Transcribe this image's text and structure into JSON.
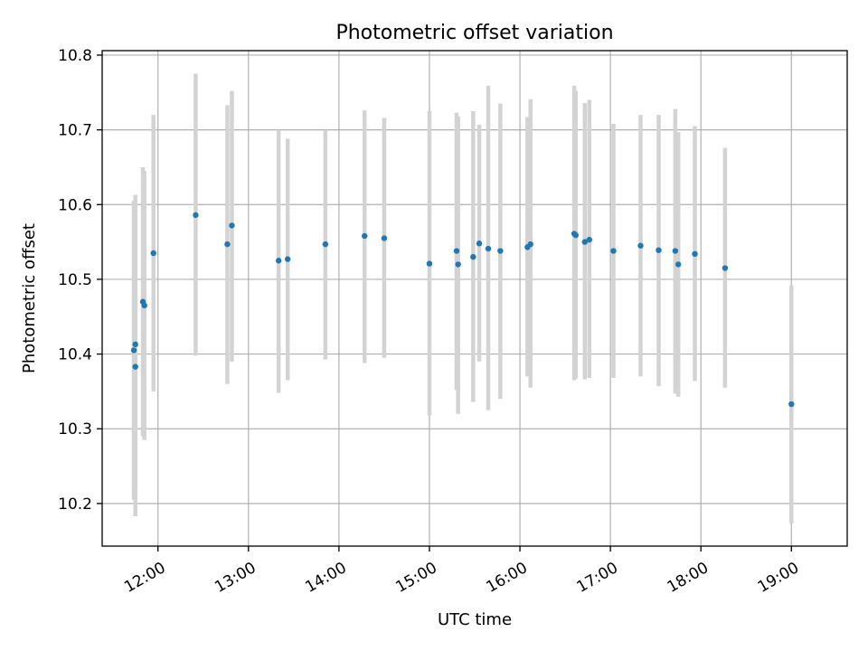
{
  "chart_data": {
    "type": "scatter",
    "title": "Photometric offset variation",
    "xlabel": "UTC time",
    "ylabel": "Photometric offset",
    "x_axis_type": "time",
    "xlim": [
      "11:23",
      "19:37"
    ],
    "ylim": [
      10.143,
      10.806
    ],
    "x_ticks": [
      "12:00",
      "13:00",
      "14:00",
      "15:00",
      "16:00",
      "17:00",
      "18:00",
      "19:00"
    ],
    "y_ticks": [
      10.2,
      10.3,
      10.4,
      10.5,
      10.6,
      10.7,
      10.8
    ],
    "y_tick_labels": [
      "10.2",
      "10.3",
      "10.4",
      "10.5",
      "10.6",
      "10.7",
      "10.8"
    ],
    "grid": true,
    "legend": "none",
    "colors": {
      "point": "#1f77b4",
      "errorbar": "#d3d3d3"
    },
    "series": [
      {
        "points": [
          {
            "x": "11:44",
            "y": 10.405,
            "ylow": 10.205,
            "yhigh": 10.605
          },
          {
            "x": "11:45",
            "y": 10.413,
            "ylow": 10.213,
            "yhigh": 10.613
          },
          {
            "x": "11:45",
            "y": 10.383,
            "ylow": 10.183,
            "yhigh": 10.583
          },
          {
            "x": "11:50",
            "y": 10.47,
            "ylow": 10.29,
            "yhigh": 10.65
          },
          {
            "x": "11:51",
            "y": 10.465,
            "ylow": 10.285,
            "yhigh": 10.645
          },
          {
            "x": "11:57",
            "y": 10.535,
            "ylow": 10.35,
            "yhigh": 10.72
          },
          {
            "x": "12:25",
            "y": 10.586,
            "ylow": 10.398,
            "yhigh": 10.775
          },
          {
            "x": "12:46",
            "y": 10.547,
            "ylow": 10.36,
            "yhigh": 10.733
          },
          {
            "x": "12:49",
            "y": 10.572,
            "ylow": 10.39,
            "yhigh": 10.752
          },
          {
            "x": "13:20",
            "y": 10.525,
            "ylow": 10.348,
            "yhigh": 10.7
          },
          {
            "x": "13:26",
            "y": 10.527,
            "ylow": 10.365,
            "yhigh": 10.688
          },
          {
            "x": "13:51",
            "y": 10.547,
            "ylow": 10.393,
            "yhigh": 10.7
          },
          {
            "x": "14:17",
            "y": 10.558,
            "ylow": 10.388,
            "yhigh": 10.726
          },
          {
            "x": "14:30",
            "y": 10.555,
            "ylow": 10.395,
            "yhigh": 10.716
          },
          {
            "x": "15:00",
            "y": 10.521,
            "ylow": 10.318,
            "yhigh": 10.725
          },
          {
            "x": "15:18",
            "y": 10.538,
            "ylow": 10.352,
            "yhigh": 10.723
          },
          {
            "x": "15:19",
            "y": 10.52,
            "ylow": 10.32,
            "yhigh": 10.718
          },
          {
            "x": "15:29",
            "y": 10.53,
            "ylow": 10.336,
            "yhigh": 10.725
          },
          {
            "x": "15:33",
            "y": 10.548,
            "ylow": 10.39,
            "yhigh": 10.707
          },
          {
            "x": "15:39",
            "y": 10.541,
            "ylow": 10.325,
            "yhigh": 10.759
          },
          {
            "x": "15:47",
            "y": 10.538,
            "ylow": 10.34,
            "yhigh": 10.735
          },
          {
            "x": "16:05",
            "y": 10.543,
            "ylow": 10.37,
            "yhigh": 10.717
          },
          {
            "x": "16:07",
            "y": 10.547,
            "ylow": 10.355,
            "yhigh": 10.741
          },
          {
            "x": "16:36",
            "y": 10.561,
            "ylow": 10.365,
            "yhigh": 10.759
          },
          {
            "x": "16:37",
            "y": 10.559,
            "ylow": 10.367,
            "yhigh": 10.752
          },
          {
            "x": "16:43",
            "y": 10.55,
            "ylow": 10.366,
            "yhigh": 10.736
          },
          {
            "x": "16:46",
            "y": 10.553,
            "ylow": 10.368,
            "yhigh": 10.74
          },
          {
            "x": "17:02",
            "y": 10.538,
            "ylow": 10.368,
            "yhigh": 10.708
          },
          {
            "x": "17:20",
            "y": 10.545,
            "ylow": 10.37,
            "yhigh": 10.72
          },
          {
            "x": "17:32",
            "y": 10.539,
            "ylow": 10.357,
            "yhigh": 10.72
          },
          {
            "x": "17:43",
            "y": 10.538,
            "ylow": 10.347,
            "yhigh": 10.728
          },
          {
            "x": "17:45",
            "y": 10.52,
            "ylow": 10.343,
            "yhigh": 10.697
          },
          {
            "x": "17:56",
            "y": 10.534,
            "ylow": 10.364,
            "yhigh": 10.705
          },
          {
            "x": "18:16",
            "y": 10.515,
            "ylow": 10.355,
            "yhigh": 10.676
          },
          {
            "x": "19:00",
            "y": 10.333,
            "ylow": 10.173,
            "yhigh": 10.492
          }
        ]
      }
    ]
  }
}
